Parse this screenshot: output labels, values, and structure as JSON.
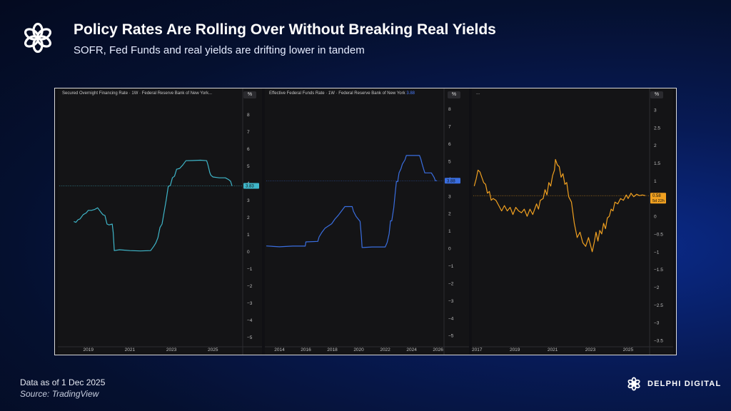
{
  "header": {
    "title": "Policy Rates Are Rolling Over Without Breaking Real Yields",
    "subtitle": "SOFR, Fed Funds and real yields are drifting lower in tandem"
  },
  "footer": {
    "date": "Data as of 1 Dec 2025",
    "source": "Source: TradingView"
  },
  "brand": {
    "name": "DELPHI DIGITAL"
  },
  "colors": {
    "sofr": "#3fb6c9",
    "fedfunds": "#3a6ee0",
    "real": "#f0a020"
  },
  "chart_data": [
    {
      "type": "line",
      "title": "Secured Overnight Financing Rate · 1W · Federal Reserve Bank of New York...",
      "unit_label": "%",
      "last_value_label": "3.83",
      "xlim": [
        2017.6,
        2026.4
      ],
      "ylim": [
        -5.4,
        8.6
      ],
      "x_ticks": [
        "2019",
        "2021",
        "2023",
        "2025"
      ],
      "x_tick_values": [
        2019,
        2021,
        2023,
        2025
      ],
      "y_ticks": [
        "8",
        "7",
        "6",
        "5",
        "4",
        "3",
        "2",
        "1",
        "0",
        "−1",
        "−2",
        "−3",
        "−4",
        "−5"
      ],
      "y_tick_values": [
        8,
        7,
        6,
        5,
        4,
        3,
        2,
        1,
        0,
        -1,
        -2,
        -3,
        -4,
        -5
      ],
      "ref_line": 3.83,
      "color": "#3fb6c9",
      "x": [
        2018.3,
        2018.4,
        2018.5,
        2018.6,
        2018.75,
        2018.9,
        2019.0,
        2019.15,
        2019.3,
        2019.45,
        2019.6,
        2019.7,
        2019.8,
        2019.9,
        2020.0,
        2020.15,
        2020.2,
        2020.25,
        2020.5,
        2021.0,
        2021.5,
        2022.0,
        2022.15,
        2022.25,
        2022.35,
        2022.45,
        2022.55,
        2022.65,
        2022.75,
        2022.85,
        2022.95,
        2023.05,
        2023.15,
        2023.25,
        2023.4,
        2023.55,
        2023.7,
        2024.0,
        2024.4,
        2024.7,
        2024.75,
        2024.8,
        2024.85,
        2024.9,
        2025.0,
        2025.3,
        2025.6,
        2025.75,
        2025.85,
        2025.92
      ],
      "y": [
        1.75,
        1.7,
        1.85,
        1.9,
        2.15,
        2.25,
        2.4,
        2.4,
        2.45,
        2.55,
        2.3,
        2.15,
        2.1,
        1.6,
        1.55,
        1.6,
        1.1,
        0.05,
        0.1,
        0.05,
        0.03,
        0.05,
        0.3,
        0.5,
        0.8,
        1.4,
        1.6,
        2.3,
        3.0,
        3.8,
        3.85,
        4.3,
        4.4,
        4.8,
        4.85,
        5.05,
        5.3,
        5.31,
        5.33,
        5.3,
        5.1,
        4.85,
        4.6,
        4.45,
        4.35,
        4.3,
        4.3,
        4.2,
        4.1,
        3.83
      ]
    },
    {
      "type": "line",
      "title": "Effective Federal Funds Rate · 1W · Federal Reserve Bank of New York",
      "title_value": "3.88",
      "unit_label": "%",
      "last_value_label": "3.88",
      "xlim": [
        2013.0,
        2026.4
      ],
      "ylim": [
        -5.4,
        8.6
      ],
      "x_ticks": [
        "2014",
        "2016",
        "2018",
        "2020",
        "2022",
        "2024",
        "2026"
      ],
      "x_tick_values": [
        2014,
        2016,
        2018,
        2020,
        2022,
        2024,
        2026
      ],
      "y_ticks": [
        "8",
        "7",
        "6",
        "5",
        "4",
        "3",
        "2",
        "1",
        "0",
        "−1",
        "−2",
        "−3",
        "−4",
        "−5"
      ],
      "y_tick_values": [
        8,
        7,
        6,
        5,
        4,
        3,
        2,
        1,
        0,
        -1,
        -2,
        -3,
        -4,
        -5
      ],
      "ref_line": 3.88,
      "color": "#3a6ee0",
      "x": [
        2013.0,
        2014.0,
        2015.0,
        2015.95,
        2016.0,
        2016.9,
        2017.0,
        2017.2,
        2017.45,
        2017.95,
        2018.2,
        2018.45,
        2018.7,
        2018.95,
        2019.2,
        2019.5,
        2019.6,
        2019.8,
        2020.1,
        2020.2,
        2020.25,
        2021.0,
        2022.0,
        2022.15,
        2022.3,
        2022.4,
        2022.5,
        2022.65,
        2022.75,
        2022.85,
        2022.95,
        2023.05,
        2023.2,
        2023.3,
        2023.5,
        2023.6,
        2024.0,
        2024.6,
        2024.7,
        2024.8,
        2024.9,
        2025.0,
        2025.5,
        2025.7,
        2025.8,
        2025.92
      ],
      "y": [
        0.14,
        0.09,
        0.13,
        0.13,
        0.37,
        0.4,
        0.66,
        0.91,
        1.16,
        1.41,
        1.68,
        1.9,
        2.15,
        2.4,
        2.4,
        2.4,
        2.13,
        1.83,
        1.55,
        0.65,
        0.05,
        0.08,
        0.08,
        0.33,
        0.83,
        1.58,
        1.58,
        2.33,
        3.08,
        3.83,
        3.83,
        4.33,
        4.58,
        4.83,
        5.08,
        5.33,
        5.33,
        5.33,
        5.13,
        4.83,
        4.58,
        4.33,
        4.33,
        4.08,
        3.88,
        3.88
      ]
    },
    {
      "type": "line",
      "title": "...",
      "unit_label": "%",
      "last_value_label": "0.58",
      "last_value_sublabel": "5d 22h",
      "xlim": [
        2016.8,
        2026.1
      ],
      "ylim": [
        -3.6,
        3.2
      ],
      "x_ticks": [
        "2017",
        "2019",
        "2021",
        "2023",
        "2025"
      ],
      "x_tick_values": [
        2017,
        2019,
        2021,
        2023,
        2025
      ],
      "y_ticks": [
        "3",
        "2.5",
        "2",
        "1.5",
        "1",
        "0.5",
        "0",
        "−0.5",
        "−1",
        "−1.5",
        "−2",
        "−2.5",
        "−3",
        "−3.5"
      ],
      "y_tick_values": [
        3,
        2.5,
        2,
        1.5,
        1,
        0.5,
        0,
        -0.5,
        -1,
        -1.5,
        -2,
        -2.5,
        -3,
        -3.5
      ],
      "ref_line": 0.58,
      "color": "#f0a020",
      "x": [
        2016.85,
        2016.95,
        2017.05,
        2017.15,
        2017.25,
        2017.35,
        2017.45,
        2017.55,
        2017.65,
        2017.75,
        2017.85,
        2018.0,
        2018.15,
        2018.3,
        2018.45,
        2018.6,
        2018.75,
        2018.9,
        2019.05,
        2019.2,
        2019.35,
        2019.5,
        2019.65,
        2019.8,
        2019.95,
        2020.05,
        2020.15,
        2020.25,
        2020.35,
        2020.5,
        2020.6,
        2020.7,
        2020.8,
        2020.9,
        2021.0,
        2021.1,
        2021.15,
        2021.25,
        2021.35,
        2021.45,
        2021.55,
        2021.65,
        2021.75,
        2021.85,
        2022.0,
        2022.15,
        2022.3,
        2022.45,
        2022.6,
        2022.75,
        2022.9,
        2023.0,
        2023.1,
        2023.2,
        2023.3,
        2023.4,
        2023.5,
        2023.6,
        2023.7,
        2023.8,
        2023.9,
        2024.0,
        2024.1,
        2024.2,
        2024.3,
        2024.45,
        2024.6,
        2024.75,
        2024.9,
        2025.0,
        2025.15,
        2025.3,
        2025.45,
        2025.6,
        2025.75,
        2025.92
      ],
      "y": [
        0.85,
        1.05,
        1.3,
        1.25,
        1.1,
        0.95,
        0.9,
        0.65,
        0.7,
        0.45,
        0.5,
        0.45,
        0.3,
        0.15,
        0.3,
        0.15,
        0.25,
        0.05,
        0.25,
        0.15,
        0.1,
        0.2,
        0.0,
        0.2,
        0.05,
        0.2,
        0.35,
        0.2,
        0.45,
        0.5,
        0.75,
        0.6,
        0.95,
        0.85,
        1.15,
        1.3,
        1.6,
        1.45,
        1.4,
        1.1,
        1.2,
        0.9,
        0.95,
        0.55,
        0.4,
        -0.2,
        -0.6,
        -0.45,
        -0.75,
        -0.85,
        -0.6,
        -0.8,
        -1.0,
        -0.75,
        -0.45,
        -0.7,
        -0.4,
        -0.5,
        -0.2,
        -0.35,
        -0.05,
        0.0,
        0.2,
        0.15,
        0.4,
        0.35,
        0.5,
        0.45,
        0.6,
        0.5,
        0.65,
        0.55,
        0.62,
        0.58,
        0.6,
        0.58
      ]
    }
  ]
}
